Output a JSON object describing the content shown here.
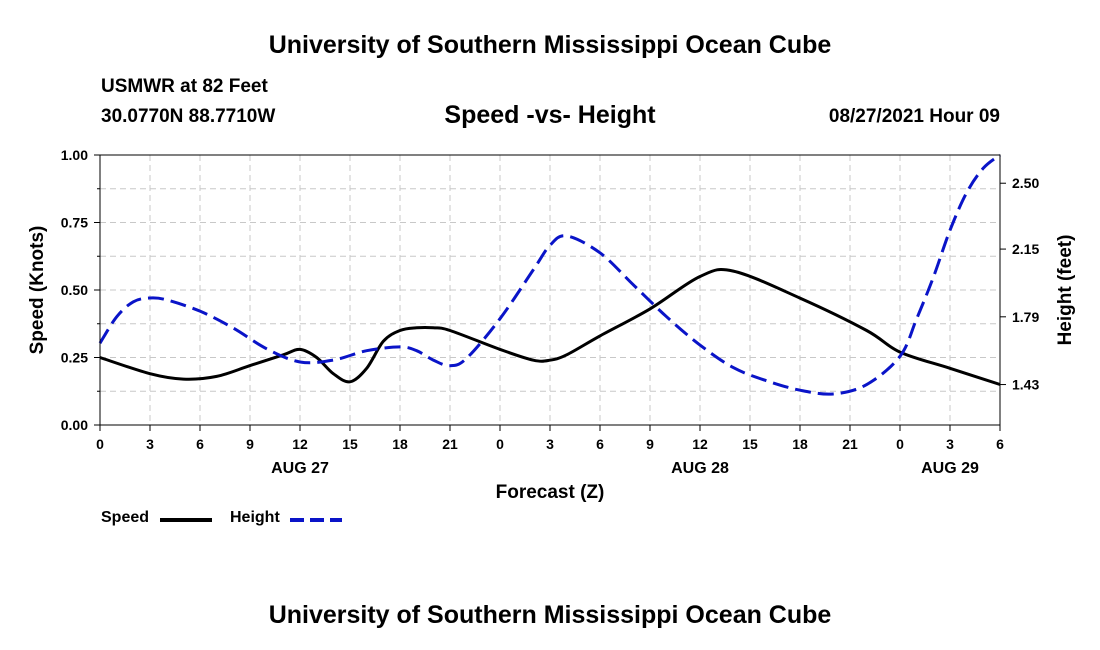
{
  "header": {
    "title": "University of Southern Mississippi Ocean Cube",
    "station": "USMWR at 82 Feet",
    "coords": "30.0770N  88.7710W",
    "datetime": "08/27/2021 Hour 09"
  },
  "footer": {
    "title": "University of Southern Mississippi Ocean Cube"
  },
  "colors": {
    "speed": "#000000",
    "height": "#0a14c8",
    "grid": "#c8c8c8"
  },
  "chart_data": {
    "type": "line",
    "title": "Speed -vs- Height",
    "xlabel": "Forecast (Z)",
    "ylabel": "Speed (Knots)",
    "y2label": "Height (feet)",
    "xlim": [
      0,
      54
    ],
    "ylim": [
      0,
      1
    ],
    "y2lim": [
      1.215,
      2.65
    ],
    "x_ticks": [
      "0",
      "3",
      "6",
      "9",
      "12",
      "15",
      "18",
      "21",
      "0",
      "3",
      "6",
      "9",
      "12",
      "15",
      "18",
      "21",
      "0",
      "3",
      "6"
    ],
    "day_labels": [
      {
        "x": 12,
        "label": "AUG 27"
      },
      {
        "x": 36,
        "label": "AUG 28"
      },
      {
        "x": 51,
        "label": "AUG 29"
      }
    ],
    "y_ticks": [
      "0.00",
      "0.25",
      "0.50",
      "0.75",
      "1.00"
    ],
    "y2_ticks": [
      "1.43",
      "1.79",
      "2.15",
      "2.50"
    ],
    "grid": true,
    "legend": {
      "position": "bottom-left",
      "entries": [
        {
          "name": "Speed",
          "style": "solid"
        },
        {
          "name": "Height",
          "style": "dashed"
        }
      ]
    },
    "series": [
      {
        "name": "Speed",
        "axis": "left",
        "x": [
          0,
          3,
          5,
          7,
          9,
          11,
          12,
          13,
          14,
          15,
          16,
          17,
          18,
          19,
          20,
          21,
          24,
          26,
          27,
          28,
          30,
          33,
          36,
          38,
          42,
          46,
          48,
          51,
          54
        ],
        "values": [
          0.25,
          0.19,
          0.17,
          0.18,
          0.22,
          0.26,
          0.28,
          0.25,
          0.19,
          0.16,
          0.21,
          0.31,
          0.35,
          0.36,
          0.36,
          0.35,
          0.28,
          0.24,
          0.24,
          0.26,
          0.33,
          0.43,
          0.55,
          0.57,
          0.47,
          0.35,
          0.27,
          0.21,
          0.15
        ]
      },
      {
        "name": "Height",
        "axis": "right",
        "x": [
          0,
          1,
          2,
          3,
          4,
          6,
          8,
          10,
          12,
          14,
          16,
          18,
          19,
          20,
          21,
          22,
          24,
          26,
          27,
          28,
          30,
          32,
          34,
          36,
          38,
          40,
          42,
          44,
          46,
          48,
          49,
          50,
          51,
          52,
          53,
          54
        ],
        "values": [
          1.65,
          1.79,
          1.87,
          1.89,
          1.88,
          1.82,
          1.73,
          1.62,
          1.55,
          1.56,
          1.61,
          1.63,
          1.61,
          1.56,
          1.53,
          1.57,
          1.78,
          2.04,
          2.17,
          2.22,
          2.13,
          1.96,
          1.79,
          1.64,
          1.52,
          1.45,
          1.4,
          1.38,
          1.43,
          1.58,
          1.78,
          2.0,
          2.25,
          2.45,
          2.58,
          2.65
        ]
      }
    ]
  }
}
